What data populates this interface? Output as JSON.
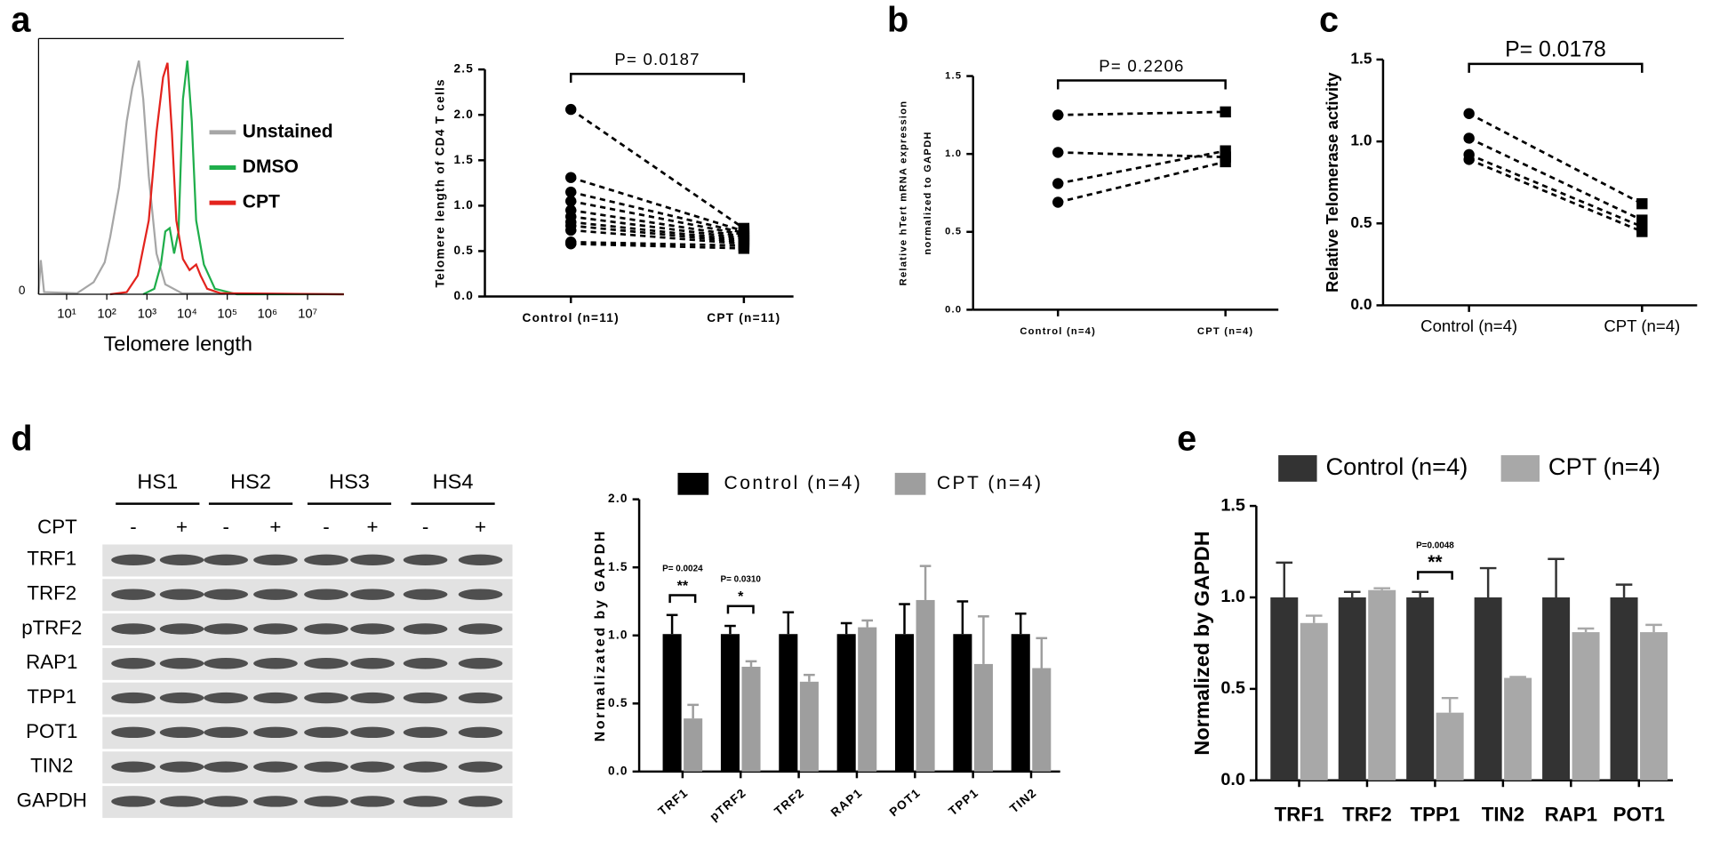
{
  "chart_data": [
    {
      "type": "flow",
      "panel": "a",
      "xlabel": "Telomere length",
      "xscale": "log",
      "xlim": [
        2,
        80000000
      ],
      "xticks": [
        {
          "value": 10,
          "label": "10¹"
        },
        {
          "value": 100,
          "label": "10²"
        },
        {
          "value": 1000,
          "label": "10³"
        },
        {
          "value": 10000,
          "label": "10⁴"
        },
        {
          "value": 100000,
          "label": "10⁵"
        },
        {
          "value": 1000000,
          "label": "10⁶"
        },
        {
          "value": 10000000,
          "label": "10⁷"
        }
      ],
      "yticks": [
        0
      ],
      "series": [
        {
          "name": "Unstained",
          "color": "#a6a6a6"
        },
        {
          "name": "DMSO",
          "color": "#1fae4b"
        },
        {
          "name": "CPT",
          "color": "#e3231d"
        }
      ]
    },
    {
      "type": "paired",
      "ylabel": [
        "Telomere length of CD4 T cells"
      ],
      "categories": [
        "Control (n=11)",
        "CPT (n=11)"
      ],
      "values": [
        [
          2.06,
          0.75
        ],
        [
          1.31,
          0.72
        ],
        [
          1.15,
          0.7
        ],
        [
          1.05,
          0.68
        ],
        [
          0.95,
          0.66
        ],
        [
          0.88,
          0.64
        ],
        [
          0.82,
          0.62
        ],
        [
          0.78,
          0.6
        ],
        [
          0.73,
          0.58
        ],
        [
          0.6,
          0.56
        ],
        [
          0.58,
          0.53
        ]
      ],
      "ylim": [
        0,
        2.5
      ],
      "yticks": [
        {
          "value": 0,
          "label": "0.0"
        },
        0.5,
        {
          "value": 1,
          "label": "1.0"
        },
        1.5,
        {
          "value": 2,
          "label": "2.0"
        },
        2.5
      ],
      "annotation": "P= 0.0187"
    },
    {
      "type": "paired",
      "panel": "b",
      "ylabel": [
        "Relative hTert mRNA expression",
        "normalized to GAPDH"
      ],
      "categories": [
        "Control (n=4)",
        "CPT (n=4)"
      ],
      "values": [
        [
          1.25,
          1.27
        ],
        [
          1.01,
          0.98
        ],
        [
          0.81,
          1.02
        ],
        [
          0.69,
          0.95
        ]
      ],
      "ylim": [
        0,
        1.5
      ],
      "yticks": [
        {
          "value": 0,
          "label": "0.0"
        },
        0.5,
        {
          "value": 1,
          "label": "1.0"
        },
        1.5
      ],
      "annotation": "P= 0.2206"
    },
    {
      "type": "paired",
      "panel": "c",
      "ylabel": [
        "Relative Telomerase activity"
      ],
      "categories": [
        "Control (n=4)",
        "CPT (n=4)"
      ],
      "values": [
        [
          1.17,
          0.62
        ],
        [
          1.02,
          0.52
        ],
        [
          0.92,
          0.48
        ],
        [
          0.89,
          0.45
        ]
      ],
      "ylim": [
        0,
        1.5
      ],
      "yticks": [
        {
          "value": 0,
          "label": "0.0"
        },
        0.5,
        {
          "value": 1,
          "label": "1.0"
        },
        1.5
      ],
      "annotation": "P= 0.0178"
    },
    {
      "type": "blot",
      "panel": "d",
      "samples": [
        "HS1",
        "HS2",
        "HS3",
        "HS4"
      ],
      "treatment": "CPT",
      "lanes": [
        "-",
        "+",
        "-",
        "+",
        "-",
        "+",
        "-",
        "+"
      ],
      "proteins": [
        "TRF1",
        "TRF2",
        "pTRF2",
        "RAP1",
        "TPP1",
        "POT1",
        "TIN2",
        "GAPDH"
      ]
    },
    {
      "type": "bar",
      "ylabel": "Normalizated by GAPDH",
      "categories": [
        "TRF1",
        "pTRF2",
        "TRF2",
        "RAP1",
        "POT1",
        "TPP1",
        "TIN2"
      ],
      "series": [
        {
          "name": "Control (n=4)",
          "color": "#000000",
          "values": [
            1.01,
            1.01,
            1.01,
            1.01,
            1.01,
            1.01,
            1.01
          ],
          "errors": [
            0.14,
            0.06,
            0.16,
            0.08,
            0.22,
            0.24,
            0.15
          ]
        },
        {
          "name": "CPT (n=4)",
          "color": "#9e9e9e",
          "values": [
            0.39,
            0.77,
            0.66,
            1.06,
            1.26,
            0.79,
            0.76
          ],
          "errors": [
            0.1,
            0.04,
            0.05,
            0.05,
            0.25,
            0.35,
            0.22
          ]
        }
      ],
      "ylim": [
        0,
        2
      ],
      "yticks": [
        {
          "value": 0,
          "label": "0.0"
        },
        0.5,
        {
          "value": 1,
          "label": "1.0"
        },
        1.5,
        {
          "value": 2,
          "label": "2.0"
        }
      ],
      "significance": [
        "**",
        "*",
        null,
        null,
        null,
        null,
        null
      ],
      "p_values": [
        "P= 0.0024",
        "P= 0.0310",
        null,
        null,
        null,
        null,
        null
      ]
    },
    {
      "type": "bar",
      "panel": "e",
      "ylabel": "Normalized by GAPDH",
      "categories": [
        "TRF1",
        "TRF2",
        "TPP1",
        "TIN2",
        "RAP1",
        "POT1"
      ],
      "series": [
        {
          "name": "Control (n=4)",
          "color": "#333333",
          "values": [
            1.0,
            1.0,
            1.0,
            1.0,
            1.0,
            1.0
          ],
          "errors": [
            0.19,
            0.03,
            0.03,
            0.16,
            0.21,
            0.07
          ]
        },
        {
          "name": "CPT (n=4)",
          "color": "#a8a8a8",
          "values": [
            0.86,
            1.04,
            0.37,
            0.56,
            0.81,
            0.81
          ],
          "errors": [
            0.04,
            0.01,
            0.08,
            0.005,
            0.02,
            0.04
          ]
        }
      ],
      "ylim": [
        0,
        1.5
      ],
      "yticks": [
        {
          "value": 0,
          "label": "0.0"
        },
        0.5,
        {
          "value": 1,
          "label": "1.0"
        },
        1.5
      ],
      "significance": [
        null,
        null,
        "**",
        null,
        null,
        null
      ],
      "p_values": [
        null,
        null,
        "P=0.0048",
        null,
        null,
        null
      ]
    }
  ]
}
